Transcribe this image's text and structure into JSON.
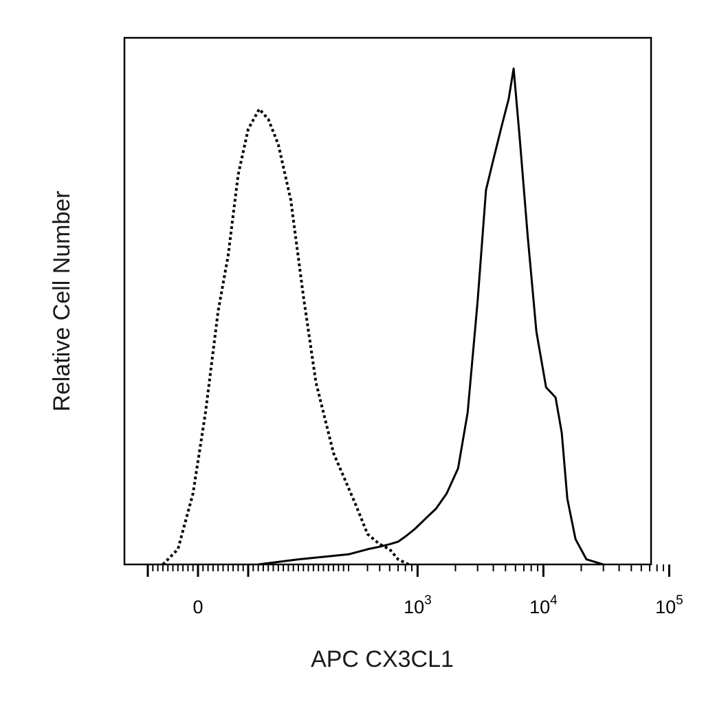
{
  "chart_data": {
    "type": "area",
    "title": "",
    "xlabel": "APC CX3CL1",
    "ylabel": "Relative Cell Number",
    "x_scale": "biexponential (linear near 0, logarithmic above ~10^3)",
    "xlim": [
      -200,
      200000
    ],
    "ylim": [
      0,
      100
    ],
    "grid": false,
    "legend": "none",
    "x_tick_labels": [
      {
        "value": 0,
        "base": "0",
        "exp": ""
      },
      {
        "value": 1000,
        "base": "10",
        "exp": "3"
      },
      {
        "value": 10000,
        "base": "10",
        "exp": "4"
      },
      {
        "value": 100000,
        "base": "10",
        "exp": "5"
      }
    ],
    "series": [
      {
        "style": "dotted",
        "color": "#000000",
        "points": [
          [
            -70,
            0
          ],
          [
            -40,
            3
          ],
          [
            -10,
            14
          ],
          [
            15,
            30
          ],
          [
            40,
            50
          ],
          [
            60,
            61
          ],
          [
            80,
            77
          ],
          [
            100,
            86
          ],
          [
            122,
            90
          ],
          [
            140,
            88
          ],
          [
            160,
            83
          ],
          [
            185,
            72
          ],
          [
            210,
            53
          ],
          [
            235,
            36
          ],
          [
            270,
            22
          ],
          [
            320,
            12
          ],
          [
            400,
            6
          ],
          [
            500,
            4
          ],
          [
            600,
            3
          ],
          [
            700,
            1
          ],
          [
            850,
            0
          ]
        ]
      },
      {
        "style": "solid",
        "color": "#000000",
        "points": [
          [
            120,
            0
          ],
          [
            200,
            1
          ],
          [
            300,
            2
          ],
          [
            400,
            3
          ],
          [
            500,
            3.5
          ],
          [
            600,
            4
          ],
          [
            700,
            4.5
          ],
          [
            800,
            5.5
          ],
          [
            950,
            7
          ],
          [
            1150,
            9
          ],
          [
            1400,
            11
          ],
          [
            1700,
            14
          ],
          [
            2100,
            19
          ],
          [
            2500,
            30
          ],
          [
            3000,
            52
          ],
          [
            3500,
            74
          ],
          [
            4000,
            80
          ],
          [
            4700,
            87
          ],
          [
            5300,
            92
          ],
          [
            5800,
            98
          ],
          [
            6500,
            84
          ],
          [
            7500,
            65
          ],
          [
            8800,
            46
          ],
          [
            10500,
            35
          ],
          [
            12500,
            33
          ],
          [
            14000,
            26
          ],
          [
            15500,
            13
          ],
          [
            18000,
            5
          ],
          [
            22000,
            1
          ],
          [
            30000,
            0
          ]
        ]
      }
    ]
  }
}
